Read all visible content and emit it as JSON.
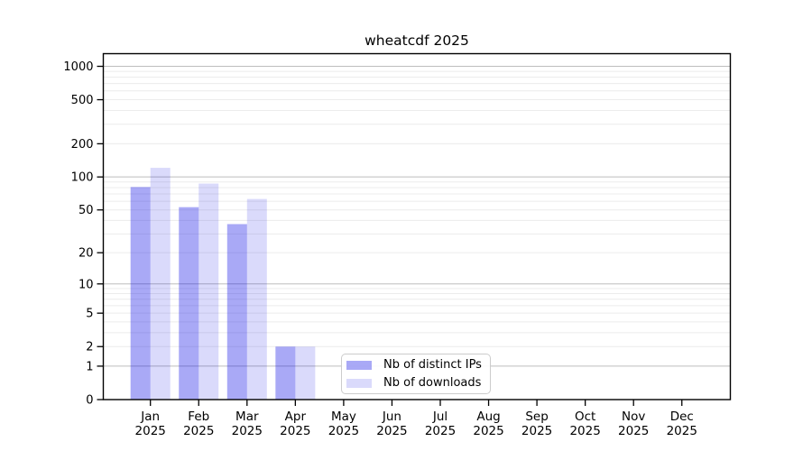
{
  "chart_data": {
    "type": "bar",
    "title": "wheatcdf 2025",
    "categories": [
      "Jan",
      "Feb",
      "Mar",
      "Apr",
      "May",
      "Jun",
      "Jul",
      "Aug",
      "Sep",
      "Oct",
      "Nov",
      "Dec"
    ],
    "year_label": "2025",
    "series": [
      {
        "name": "Nb of distinct IPs",
        "color": "rgba(10,10,230,0.35)",
        "values": [
          81,
          53,
          37,
          2,
          0,
          0,
          0,
          0,
          0,
          0,
          0,
          0
        ]
      },
      {
        "name": "Nb of downloads",
        "color": "rgba(10,10,230,0.15)",
        "values": [
          121,
          87,
          63,
          2,
          0,
          0,
          0,
          0,
          0,
          0,
          0,
          0
        ]
      }
    ],
    "xlabel": "",
    "ylabel": "",
    "yscale": "log1p",
    "ylim": [
      0,
      1300
    ],
    "yticks": [
      0,
      1,
      2,
      5,
      10,
      20,
      50,
      100,
      200,
      500,
      1000
    ],
    "grid": {
      "major_values": [
        1,
        10,
        100,
        1000
      ],
      "minor_values": [
        2,
        3,
        4,
        5,
        6,
        7,
        8,
        9,
        20,
        30,
        40,
        50,
        60,
        70,
        80,
        90,
        200,
        300,
        400,
        500,
        600,
        700,
        800,
        900
      ],
      "major_color": "#bdbdbd",
      "minor_color": "#ececec"
    },
    "legend": {
      "position": "bottom-center",
      "border_color": "#cccccc"
    }
  },
  "colors": {
    "background": "#ffffff",
    "axis": "#000000",
    "text": "#000000"
  }
}
